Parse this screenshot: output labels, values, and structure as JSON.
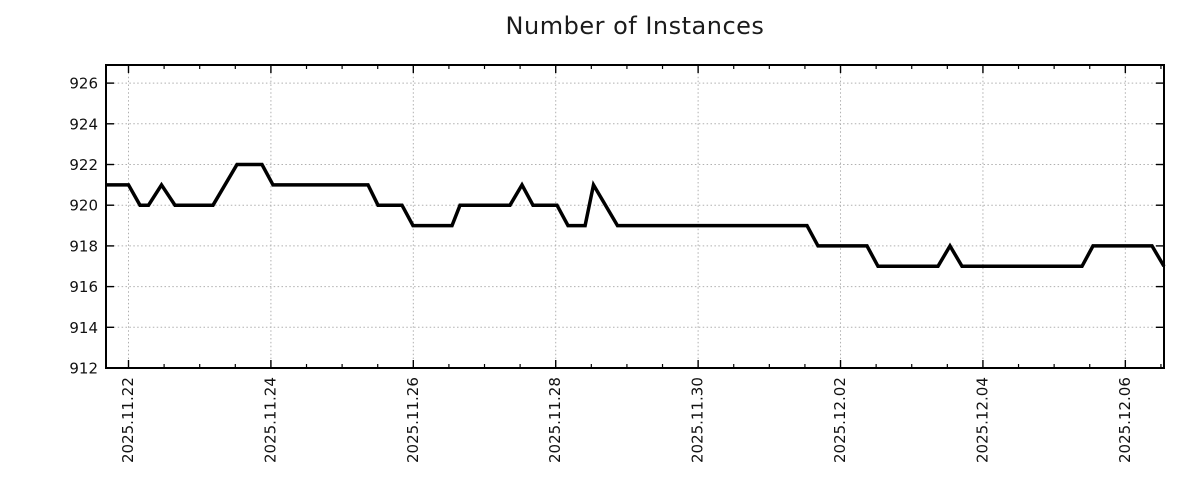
{
  "page": {
    "background": "#ffffff"
  },
  "chart_data": {
    "type": "line",
    "title": "Number of Instances",
    "legend": {
      "show": false
    },
    "grid": {
      "show": true,
      "color": "#b0b0b0",
      "style": "dotted"
    },
    "axis_color": "#000000",
    "background": "#ffffff",
    "x_axis": {
      "unit": "days since 2025-11-22 00:00",
      "range": [
        -0.316,
        14.543
      ],
      "minor_tick_interval_days": 0.5,
      "label_rotation_deg": -90,
      "major_ticks": [
        {
          "day": 0,
          "label": "2025.11.22"
        },
        {
          "day": 2,
          "label": "2025.11.24"
        },
        {
          "day": 4,
          "label": "2025.11.26"
        },
        {
          "day": 6,
          "label": "2025.11.28"
        },
        {
          "day": 8,
          "label": "2025.11.30"
        },
        {
          "day": 10,
          "label": "2025.12.02"
        },
        {
          "day": 12,
          "label": "2025.12.04"
        },
        {
          "day": 14,
          "label": "2025.12.06"
        }
      ]
    },
    "y_axis": {
      "range": [
        912,
        926.89
      ],
      "ticks": [
        912,
        914,
        916,
        918,
        920,
        922,
        924,
        926
      ]
    },
    "series": [
      {
        "name": "instances",
        "color": "#000000",
        "stroke_width": 3.5,
        "points": [
          [
            -0.316,
            921
          ],
          [
            0.0,
            921
          ],
          [
            0.162,
            920
          ],
          [
            0.281,
            920
          ],
          [
            0.463,
            921
          ],
          [
            0.653,
            920
          ],
          [
            1.187,
            920
          ],
          [
            1.524,
            922
          ],
          [
            1.875,
            922
          ],
          [
            2.029,
            921
          ],
          [
            3.364,
            921
          ],
          [
            3.504,
            920
          ],
          [
            3.841,
            920
          ],
          [
            3.996,
            919
          ],
          [
            4.544,
            919
          ],
          [
            4.656,
            920
          ],
          [
            5.358,
            920
          ],
          [
            5.527,
            921
          ],
          [
            5.681,
            920
          ],
          [
            6.018,
            920
          ],
          [
            6.173,
            919
          ],
          [
            6.412,
            919
          ],
          [
            6.531,
            921
          ],
          [
            6.868,
            919
          ],
          [
            9.529,
            919
          ],
          [
            9.684,
            918
          ],
          [
            10.372,
            918
          ],
          [
            10.526,
            917
          ],
          [
            11.369,
            917
          ],
          [
            11.538,
            918
          ],
          [
            11.706,
            917
          ],
          [
            13.392,
            917
          ],
          [
            13.546,
            918
          ],
          [
            14.375,
            918
          ],
          [
            14.543,
            917
          ]
        ]
      }
    ]
  }
}
